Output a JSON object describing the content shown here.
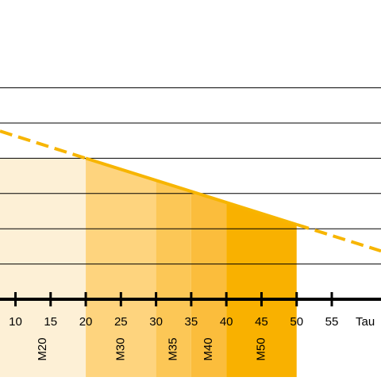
{
  "chart_data": {
    "type": "line",
    "xlabel": "Tau",
    "xlim": [
      7.8,
      62
    ],
    "xticks": [
      10,
      15,
      20,
      25,
      30,
      35,
      40,
      45,
      50,
      55
    ],
    "ylim": [
      0,
      6
    ],
    "yticks": [
      1,
      2,
      3,
      4,
      5,
      6
    ],
    "grid": true,
    "x": [
      7.8,
      20,
      50,
      62
    ],
    "series": [
      {
        "color": "#f7b500",
        "values": [
          4.77,
          4.0,
          2.12,
          1.37
        ],
        "styles": [
          "dashed",
          "solid",
          "dashed"
        ]
      }
    ],
    "zones": [
      {
        "name": "M20",
        "from": 7.8,
        "to": 20,
        "top": [
          4.0,
          4.0
        ],
        "color": "#fdf0d6"
      },
      {
        "name": "M30",
        "from": 20,
        "to": 30,
        "top": [
          4.0,
          3.37
        ],
        "color": "#fed47e"
      },
      {
        "name": "M35",
        "from": 30,
        "to": 35,
        "top": [
          3.37,
          3.06
        ],
        "color": "#fcc756"
      },
      {
        "name": "M40",
        "from": 35,
        "to": 40,
        "top": [
          3.06,
          2.75
        ],
        "color": "#fbbd3c"
      },
      {
        "name": "M50",
        "from": 40,
        "to": 50,
        "top": [
          2.75,
          2.12
        ],
        "color": "#f9b100"
      }
    ]
  }
}
